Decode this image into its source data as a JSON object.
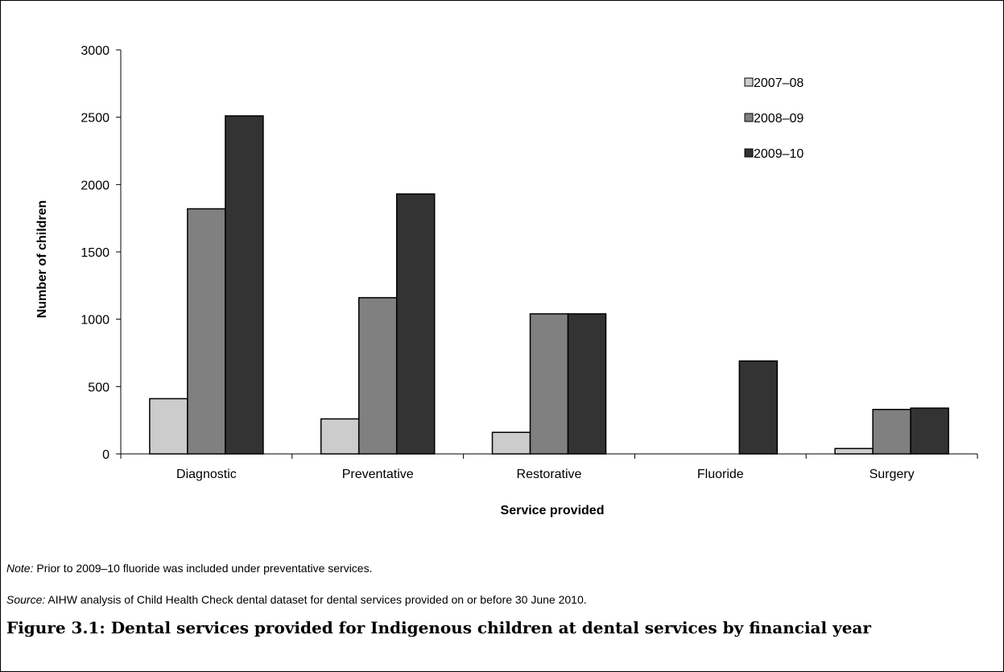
{
  "chart_data": {
    "type": "bar",
    "xlabel": "Service provided",
    "ylabel": "Number of children",
    "ylim": [
      0,
      3000
    ],
    "yticks": [
      0,
      500,
      1000,
      1500,
      2000,
      2500,
      3000
    ],
    "grid": false,
    "legend_position": "top-right",
    "categories": [
      "Diagnostic",
      "Preventative",
      "Restorative",
      "Fluoride",
      "Surgery"
    ],
    "series": [
      {
        "name": "2007–08",
        "color": "#cccccc",
        "values": [
          410,
          260,
          160,
          0,
          40
        ]
      },
      {
        "name": "2008–09",
        "color": "#808080",
        "values": [
          1820,
          1160,
          1040,
          0,
          330
        ]
      },
      {
        "name": "2009–10",
        "color": "#333333",
        "values": [
          2510,
          1930,
          1040,
          690,
          340
        ]
      }
    ]
  },
  "notes": {
    "note_label": "Note:",
    "note_text": " Prior to 2009–10 fluoride was included under preventative services.",
    "source_label": "Source:",
    "source_text": " AIHW analysis of Child Health Check dental dataset for dental services provided on or before 30 June 2010."
  },
  "caption": "Figure 3.1: Dental services provided for Indigenous children at dental services by financial year"
}
